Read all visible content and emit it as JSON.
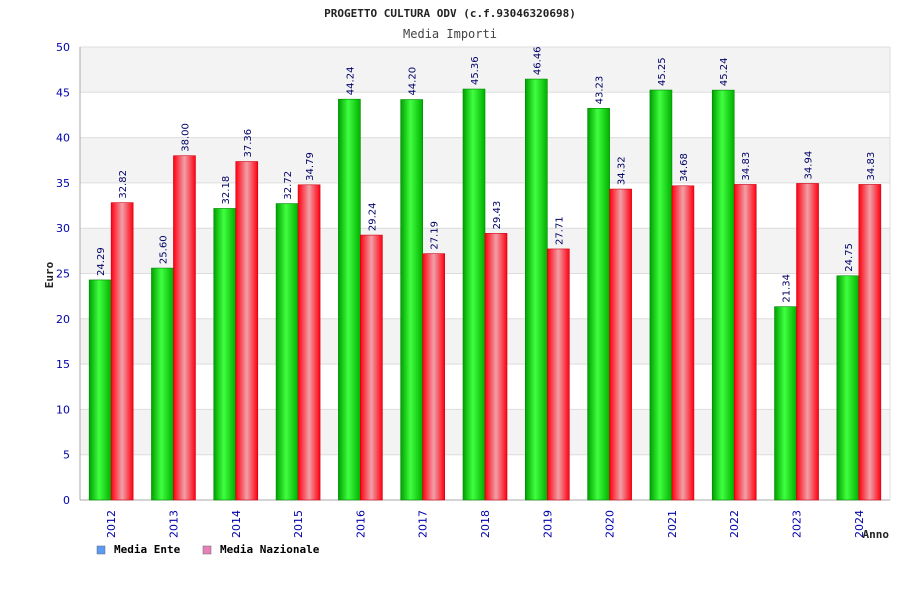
{
  "chart_data": {
    "type": "bar",
    "title": "PROGETTO CULTURA ODV (c.f.93046320698)",
    "subtitle": "Media Importi",
    "xlabel": "Anno",
    "ylabel": "Euro",
    "ylim": [
      0,
      50
    ],
    "yticks": [
      0,
      5,
      10,
      15,
      20,
      25,
      30,
      35,
      40,
      45,
      50
    ],
    "categories": [
      "2012",
      "2013",
      "2014",
      "2015",
      "2016",
      "2017",
      "2018",
      "2019",
      "2020",
      "2021",
      "2022",
      "2023",
      "2024"
    ],
    "series": [
      {
        "name": "Media Ente",
        "color": "#00c000",
        "legend_color": "#5b9bf5",
        "values": [
          24.29,
          25.6,
          32.18,
          32.72,
          44.24,
          44.2,
          45.36,
          46.46,
          43.23,
          45.25,
          45.24,
          21.34,
          24.75
        ],
        "labels": [
          "24.29",
          "25.60",
          "32.18",
          "32.72",
          "44.24",
          "44.20",
          "45.36",
          "46.46",
          "43.23",
          "45.25",
          "45.24",
          "21.34",
          "24.75"
        ]
      },
      {
        "name": "Media Nazionale",
        "color": "#ff1020",
        "legend_color": "#e680b8",
        "values": [
          32.82,
          38.0,
          37.36,
          34.79,
          29.24,
          27.19,
          29.43,
          27.71,
          34.32,
          34.68,
          34.83,
          34.94,
          34.83
        ],
        "labels": [
          "32.82",
          "38.00",
          "37.36",
          "34.79",
          "29.24",
          "27.19",
          "29.43",
          "27.71",
          "34.32",
          "34.68",
          "34.83",
          "34.94",
          "34.83"
        ]
      }
    ],
    "grid": true,
    "legend_position": "bottom-left"
  }
}
